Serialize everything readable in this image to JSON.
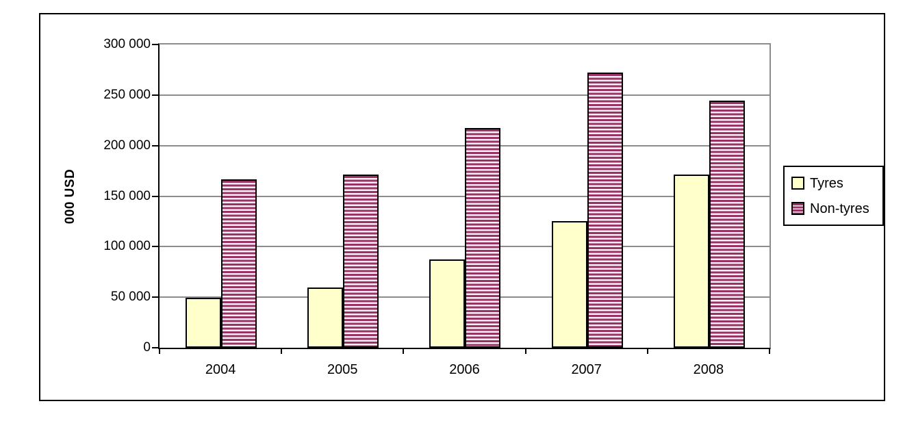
{
  "chart_data": {
    "type": "bar",
    "title": "",
    "xlabel": "",
    "ylabel": "000 USD",
    "categories": [
      "2004",
      "2005",
      "2006",
      "2007",
      "2008"
    ],
    "series": [
      {
        "name": "Tyres",
        "values": [
          48000,
          58000,
          86000,
          124000,
          170000
        ],
        "fill": "#FFFFCC",
        "pattern": "solid"
      },
      {
        "name": "Non-tyres",
        "values": [
          165000,
          170000,
          216000,
          271000,
          243000
        ],
        "fill": "#993366",
        "pattern": "horizontal-stripes",
        "stripe_light": "#FAEFF5"
      }
    ],
    "ylim": [
      0,
      300000
    ],
    "ytick_interval": 50000,
    "ytick_labels": [
      "0",
      "50 000",
      "100 000",
      "150 000",
      "200 000",
      "250 000",
      "300 000"
    ],
    "grid": "horizontal-gridlines-on",
    "legend_position": "right-outside"
  },
  "legend": {
    "items": [
      {
        "label": "Tyres"
      },
      {
        "label": "Non-tyres"
      }
    ]
  },
  "colors": {
    "background": "#FFFFFF",
    "frame_border": "#000000",
    "axis": "#000000",
    "gridline": "#8C8C8C",
    "bar_border": "#000000",
    "tyres_fill": "#FFFFCC",
    "non_tyres_stripe_dark": "#993366",
    "non_tyres_stripe_light": "#FAEFF5"
  }
}
